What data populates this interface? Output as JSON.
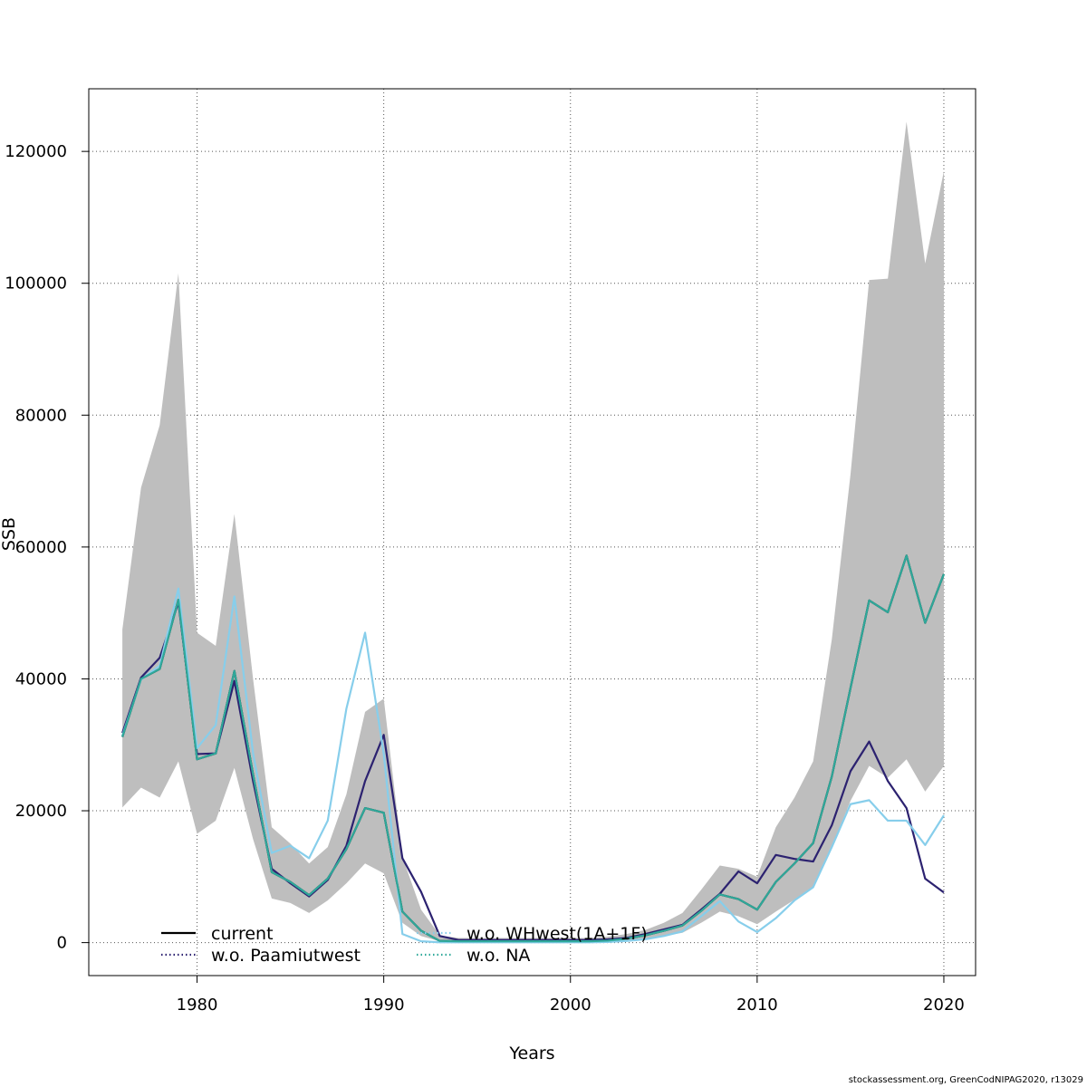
{
  "chart_data": {
    "type": "line",
    "title": "",
    "xlabel": "Years",
    "ylabel": "SSB",
    "xlim": [
      1974.2,
      2021.7
    ],
    "ylim": [
      -5000,
      129500
    ],
    "xticks": [
      1980,
      1990,
      2000,
      2010,
      2020
    ],
    "yticks": [
      0,
      20000,
      40000,
      60000,
      80000,
      100000,
      120000
    ],
    "grid": true,
    "legend_position": "bottom-left",
    "x": [
      1976,
      1977,
      1978,
      1979,
      1980,
      1981,
      1982,
      1983,
      1984,
      1985,
      1986,
      1987,
      1988,
      1989,
      1990,
      1991,
      1992,
      1993,
      1994,
      1995,
      1996,
      1997,
      1998,
      1999,
      2000,
      2001,
      2002,
      2003,
      2004,
      2005,
      2006,
      2007,
      2008,
      2009,
      2010,
      2011,
      2012,
      2013,
      2014,
      2015,
      2016,
      2017,
      2018,
      2019,
      2020
    ],
    "band": {
      "color": "#bebebe",
      "upper": [
        47500,
        69000,
        78500,
        101500,
        47000,
        45000,
        65000,
        40000,
        17500,
        15000,
        12000,
        14500,
        22500,
        35000,
        37000,
        13000,
        5000,
        1100,
        700,
        700,
        700,
        700,
        700,
        700,
        700,
        700,
        900,
        1300,
        1900,
        3000,
        4500,
        8000,
        11700,
        11200,
        10000,
        17500,
        22000,
        27500,
        46000,
        71000,
        100500,
        100700,
        124500,
        103000,
        117000
      ],
      "lower": [
        20500,
        23500,
        22000,
        27500,
        16500,
        18500,
        26500,
        15700,
        6700,
        6000,
        4500,
        6400,
        9000,
        12000,
        10500,
        3000,
        1000,
        200,
        150,
        150,
        150,
        150,
        150,
        150,
        150,
        150,
        200,
        300,
        600,
        1000,
        1500,
        3000,
        4700,
        4000,
        2800,
        4700,
        6500,
        8500,
        14500,
        21500,
        26800,
        25000,
        27800,
        22900,
        26800
      ]
    },
    "series": [
      {
        "name": "current",
        "color": "#000000",
        "dash": "solid",
        "values": [
          31200,
          40000,
          41500,
          52000,
          27800,
          28700,
          41200,
          25500,
          10700,
          9200,
          7200,
          9700,
          14200,
          20400,
          19700,
          4700,
          1800,
          250,
          200,
          200,
          200,
          200,
          200,
          200,
          200,
          200,
          300,
          600,
          1100,
          1800,
          2600,
          4800,
          7300,
          6600,
          5000,
          9200,
          12000,
          15100,
          25200,
          38600,
          51900,
          50100,
          58700,
          48500,
          55900
        ]
      },
      {
        "name": "w.o. Paamiutwest",
        "color": "#2c2270",
        "dash": "solid",
        "values": [
          31800,
          40200,
          43200,
          51600,
          28600,
          28700,
          39700,
          24500,
          11200,
          9000,
          7000,
          9500,
          14700,
          24500,
          31500,
          12800,
          7700,
          1000,
          400,
          400,
          400,
          400,
          400,
          400,
          400,
          400,
          500,
          700,
          1300,
          2000,
          2700,
          5000,
          7400,
          10800,
          9000,
          13300,
          12700,
          12300,
          17800,
          26000,
          30500,
          24500,
          20400,
          9700,
          7600
        ]
      },
      {
        "name": "w.o. WHwest(1A+1F)",
        "color": "#87ceeb",
        "dash": "solid",
        "values": [
          31400,
          39900,
          42000,
          53700,
          29500,
          33000,
          52500,
          28700,
          13600,
          14700,
          12800,
          18500,
          35500,
          47000,
          28600,
          1300,
          200,
          50,
          50,
          50,
          50,
          50,
          50,
          50,
          50,
          50,
          100,
          250,
          500,
          1000,
          1700,
          4000,
          6300,
          3200,
          1600,
          3700,
          6400,
          8400,
          14500,
          21000,
          21600,
          18500,
          18500,
          14800,
          19300
        ]
      },
      {
        "name": "w.o. NA",
        "color": "#2fa89a",
        "dash": "solid",
        "values": [
          31200,
          40000,
          41500,
          52000,
          27800,
          28700,
          41200,
          25500,
          10700,
          9200,
          7200,
          9700,
          14200,
          20400,
          19700,
          4700,
          1800,
          250,
          200,
          200,
          200,
          200,
          200,
          200,
          200,
          200,
          300,
          600,
          1100,
          1800,
          2600,
          4800,
          7300,
          6600,
          5000,
          9200,
          12000,
          15100,
          25200,
          38600,
          51900,
          50100,
          58700,
          48500,
          55900
        ]
      }
    ],
    "legend": [
      {
        "label": "current",
        "color": "#000000",
        "style": "solid"
      },
      {
        "label": "w.o. Paamiutwest",
        "color": "#2c2270",
        "style": "dotted"
      },
      {
        "label": "w.o. WHwest(1A+1F)",
        "color": "#87ceeb",
        "style": "dotted"
      },
      {
        "label": "w.o. NA",
        "color": "#2fa89a",
        "style": "dotted"
      }
    ]
  },
  "footer": "stockassessment.org, GreenCodNIPAG2020, r13029"
}
